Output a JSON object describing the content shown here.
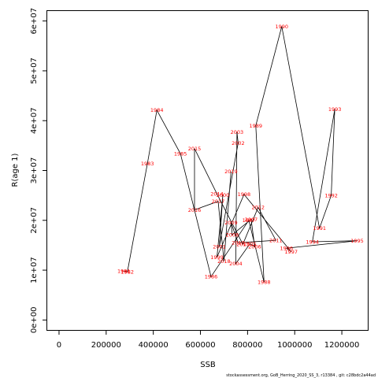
{
  "chart_data": {
    "type": "line",
    "title": "",
    "xlabel": "SSB",
    "ylabel": "R(age 1)",
    "xlim": [
      -50000,
      1310000
    ],
    "ylim": [
      -2000000,
      62000000
    ],
    "x_ticks": [
      0,
      200000,
      400000,
      600000,
      800000,
      1000000,
      1200000
    ],
    "x_tick_labels": [
      "0",
      "200000",
      "400000",
      "600000",
      "800000",
      "1000000",
      "1200000"
    ],
    "y_ticks": [
      0,
      10000000,
      20000000,
      30000000,
      40000000,
      50000000,
      60000000
    ],
    "y_tick_labels": [
      "0e+00",
      "1e+07",
      "2e+07",
      "3e+07",
      "4e+07",
      "5e+07",
      "6e+07"
    ],
    "grid": false,
    "line_color": "#000000",
    "label_color": "#ff0000",
    "points": [
      {
        "year": "1981",
        "ssb": 275000,
        "rec": 9800000
      },
      {
        "year": "1982",
        "ssb": 290000,
        "rec": 9700000
      },
      {
        "year": "1983",
        "ssb": 375000,
        "rec": 31400000
      },
      {
        "year": "1984",
        "ssb": 415000,
        "rec": 42100000
      },
      {
        "year": "1985",
        "ssb": 515000,
        "rec": 33400000
      },
      {
        "year": "1986",
        "ssb": 645000,
        "rec": 8700000
      },
      {
        "year": "1987",
        "ssb": 805000,
        "rec": 20000000
      },
      {
        "year": "1988",
        "ssb": 870000,
        "rec": 7600000
      },
      {
        "year": "1989",
        "ssb": 835000,
        "rec": 39000000
      },
      {
        "year": "1990",
        "ssb": 945000,
        "rec": 58900000
      },
      {
        "year": "1991",
        "ssb": 1105000,
        "rec": 18400000
      },
      {
        "year": "1992",
        "ssb": 1155000,
        "rec": 25000000
      },
      {
        "year": "1993",
        "ssb": 1170000,
        "rec": 42300000
      },
      {
        "year": "1994",
        "ssb": 1075000,
        "rec": 15700000
      },
      {
        "year": "1995",
        "ssb": 1265000,
        "rec": 15900000
      },
      {
        "year": "1996",
        "ssb": 965000,
        "rec": 14400000
      },
      {
        "year": "1997",
        "ssb": 985000,
        "rec": 13700000
      },
      {
        "year": "1998",
        "ssb": 785000,
        "rec": 25200000
      },
      {
        "year": "1999",
        "ssb": 670000,
        "rec": 12600000
      },
      {
        "year": "2000",
        "ssb": 695000,
        "rec": 25100000
      },
      {
        "year": "2001",
        "ssb": 680000,
        "rec": 14700000
      },
      {
        "year": "2002",
        "ssb": 760000,
        "rec": 35500000
      },
      {
        "year": "2003",
        "ssb": 755000,
        "rec": 37700000
      },
      {
        "year": "2004",
        "ssb": 750000,
        "rec": 11300000
      },
      {
        "year": "2005",
        "ssb": 810000,
        "rec": 15300000
      },
      {
        "year": "2006",
        "ssb": 830000,
        "rec": 14700000
      },
      {
        "year": "2007",
        "ssb": 815000,
        "rec": 20200000
      },
      {
        "year": "2008",
        "ssb": 735000,
        "rec": 17100000
      },
      {
        "year": "2009",
        "ssb": 730000,
        "rec": 19500000
      },
      {
        "year": "2010",
        "ssb": 760000,
        "rec": 15500000
      },
      {
        "year": "2011",
        "ssb": 920000,
        "rec": 16000000
      },
      {
        "year": "2012",
        "ssb": 845000,
        "rec": 22600000
      },
      {
        "year": "2013",
        "ssb": 780000,
        "rec": 15200000
      },
      {
        "year": "2014",
        "ssb": 670000,
        "rec": 25300000
      },
      {
        "year": "2015",
        "ssb": 575000,
        "rec": 34400000
      },
      {
        "year": "2016",
        "ssb": 575000,
        "rec": 22100000
      },
      {
        "year": "2017",
        "ssb": 675000,
        "rec": 23800000
      },
      {
        "year": "2018",
        "ssb": 700000,
        "rec": 11800000
      },
      {
        "year": "2019",
        "ssb": 730000,
        "rec": 29800000
      }
    ]
  },
  "footer_text": "stockassessment.org,  GoB_Herring_2020_SS_3, r13384 , git: c28bdc2a44ad"
}
